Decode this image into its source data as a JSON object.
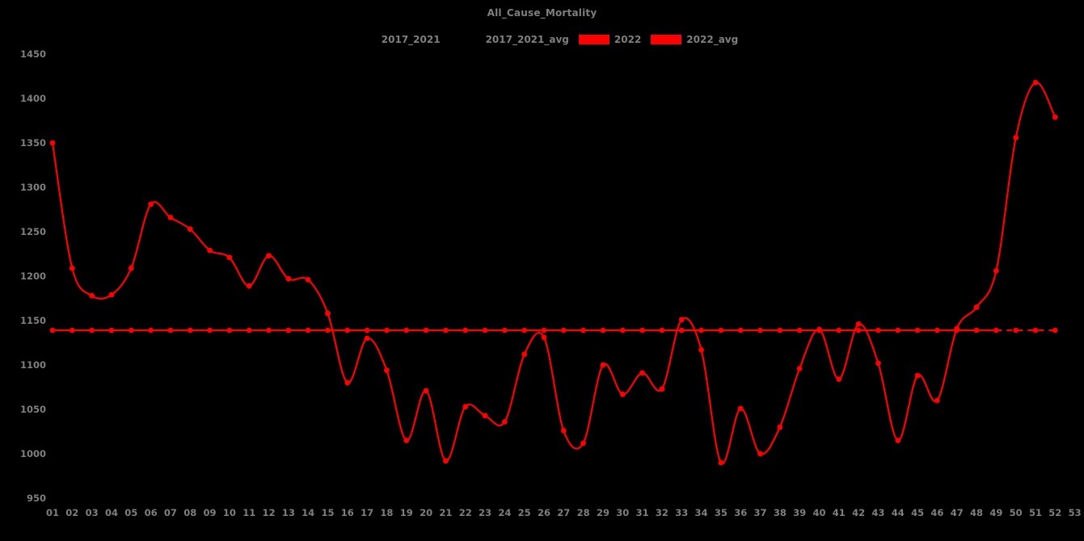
{
  "title": "All_Cause_Mortality",
  "legend": {
    "items": [
      {
        "label": "2017_2021",
        "swatch_color": "#000000"
      },
      {
        "label": "2017_2021_avg",
        "swatch_color": "#000000"
      },
      {
        "label": "2022",
        "swatch_color": "#ff0000"
      },
      {
        "label": "2022_avg",
        "swatch_color": "#ff0000"
      }
    ]
  },
  "colors": {
    "background": "#000000",
    "text": "#7f7f7f",
    "series_2022": "#ff0000",
    "series_2022_avg": "#ff0000",
    "series_2017_2021": "#000000",
    "series_2017_2021_avg": "#000000"
  },
  "chart_data": {
    "type": "line",
    "title": "All_Cause_Mortality",
    "xlabel": "",
    "ylabel": "",
    "x_tick_labels": [
      "01",
      "02",
      "03",
      "04",
      "05",
      "06",
      "07",
      "08",
      "09",
      "10",
      "11",
      "12",
      "13",
      "14",
      "15",
      "16",
      "17",
      "18",
      "19",
      "20",
      "21",
      "22",
      "23",
      "24",
      "25",
      "26",
      "27",
      "28",
      "29",
      "30",
      "31",
      "32",
      "33",
      "34",
      "35",
      "36",
      "37",
      "38",
      "39",
      "40",
      "41",
      "42",
      "43",
      "44",
      "45",
      "46",
      "47",
      "48",
      "49",
      "50",
      "51",
      "52",
      "53"
    ],
    "y_ticks": [
      950,
      1000,
      1050,
      1100,
      1150,
      1200,
      1250,
      1300,
      1350,
      1400,
      1450
    ],
    "ylim": [
      950,
      1450
    ],
    "xlim_weeks": [
      1,
      53
    ],
    "grid": false,
    "legend_position": "top-center",
    "series": [
      {
        "name": "2022",
        "color": "#ff0000",
        "style": "smooth-line-with-markers",
        "weeks": [
          1,
          2,
          3,
          4,
          5,
          6,
          7,
          8,
          9,
          10,
          11,
          12,
          13,
          14,
          15,
          16,
          17,
          18,
          19,
          20,
          21,
          22,
          23,
          24,
          25,
          26,
          27,
          28,
          29,
          30,
          31,
          32,
          33,
          34,
          35,
          36,
          37,
          38,
          39,
          40,
          41,
          42,
          43,
          44,
          45,
          46,
          47,
          48,
          49,
          50,
          51,
          52
        ],
        "values": [
          1350,
          1209,
          1178,
          1179,
          1209,
          1281,
          1266,
          1253,
          1229,
          1221,
          1189,
          1223,
          1197,
          1196,
          1158,
          1080,
          1130,
          1094,
          1015,
          1071,
          992,
          1053,
          1043,
          1036,
          1112,
          1131,
          1026,
          1012,
          1100,
          1067,
          1091,
          1073,
          1151,
          1117,
          990,
          1051,
          1000,
          1030,
          1096,
          1140,
          1084,
          1146,
          1102,
          1015,
          1088,
          1060,
          1141,
          1165,
          1206,
          1356,
          1418,
          1379
        ]
      },
      {
        "name": "2022_avg",
        "color": "#ff0000",
        "style": "flat-line-with-markers",
        "value": 1139,
        "from_week": 1,
        "to_week": 52,
        "solid_until_week": 49,
        "dashed_after": true
      },
      {
        "name": "2017_2021",
        "color": "#000000",
        "style": "line",
        "values_visible": false
      },
      {
        "name": "2017_2021_avg",
        "color": "#000000",
        "style": "line",
        "values_visible": false
      }
    ]
  }
}
